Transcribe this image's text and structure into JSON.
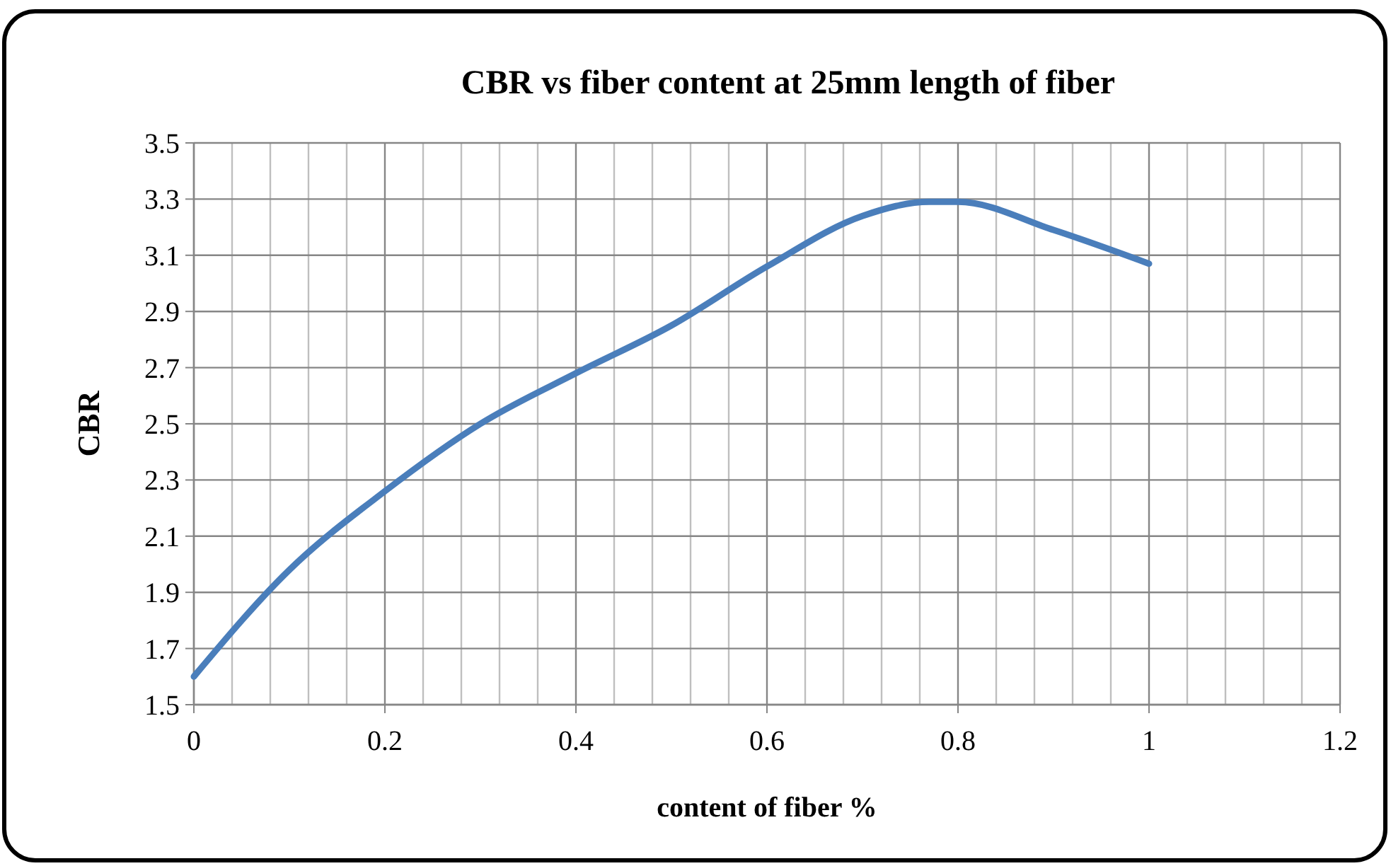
{
  "chart_data": {
    "type": "line",
    "title": "CBR vs fiber content  at 25mm length of fiber",
    "xlabel": "content of fiber %",
    "ylabel": "CBR",
    "x": [
      0,
      0.1,
      0.2,
      0.3,
      0.4,
      0.5,
      0.6,
      0.7,
      0.77,
      0.8,
      0.9,
      1
    ],
    "series": [
      {
        "color": "#4a7ebb",
        "values": [
          1.6,
          1.98,
          2.26,
          2.5,
          2.68,
          2.85,
          3.06,
          3.24,
          3.29,
          3.29,
          3.19,
          3.07
        ]
      }
    ],
    "xlim": [
      0,
      1.2
    ],
    "xticks": [
      0,
      0.2,
      0.4,
      0.6,
      0.8,
      1,
      1.2
    ],
    "ylim": [
      1.5,
      3.5
    ],
    "yticks": [
      1.5,
      1.7,
      1.9,
      2.1,
      2.3,
      2.5,
      2.7,
      2.9,
      3.1,
      3.3,
      3.5
    ],
    "grid": true,
    "marker": "none",
    "line_style": "solid"
  }
}
